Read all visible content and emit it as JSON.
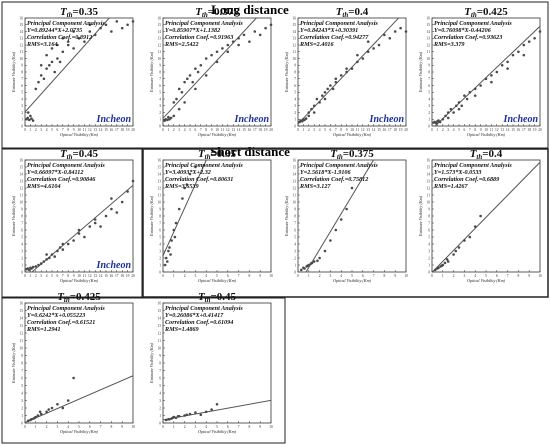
{
  "section_titles": {
    "long": "Long distance",
    "short": "Short distance"
  },
  "common": {
    "method": "Principal Component Analysis",
    "xlabel": "Optical Visibility (Km)",
    "ylabel": "Estimate Visibility (Km)",
    "location": "Incheon"
  },
  "colors": {
    "points": "#4a4a4a",
    "line": "#555555",
    "location": "#1a2f9c",
    "frame": "#222222"
  },
  "chart_data": [
    {
      "type": "scatter",
      "group": "long",
      "threshold": "T_th=0.35",
      "equation": "Y=0.89244*X+2.0735",
      "correlation": "Correlation Coef.=0.8912",
      "rms": "RMS=3.164",
      "xlim": [
        0,
        20
      ],
      "ylim": [
        0,
        16
      ],
      "fit": {
        "slope": 0.89244,
        "intercept": 2.0735
      },
      "x": [
        0.3,
        0.5,
        0.8,
        1,
        1.2,
        1.5,
        0.6,
        2,
        2.5,
        3,
        3.5,
        4,
        4.5,
        5,
        5.5,
        6,
        6.5,
        7,
        8,
        9,
        10,
        11,
        12,
        13,
        14,
        15,
        16,
        17,
        18,
        19,
        20,
        3,
        4,
        5,
        6,
        7,
        8,
        9,
        10,
        12
      ],
      "y": [
        1.0,
        1.2,
        0.9,
        1.5,
        1.1,
        0.8,
        2.0,
        5.5,
        6.5,
        7.5,
        7.0,
        8.5,
        9.0,
        9.5,
        8.0,
        10.0,
        9.5,
        11.0,
        12.0,
        11.5,
        13.0,
        12.5,
        14.0,
        13.5,
        14.5,
        15.0,
        14.0,
        15.5,
        14.5,
        15.0,
        15.5,
        9.0,
        10.5,
        11.5,
        12.0,
        13.0,
        12.5,
        14.0,
        13.0,
        15.0
      ]
    },
    {
      "type": "scatter",
      "group": "long",
      "threshold": "T_th=0.375",
      "equation": "Y=0.85907*X+1.1382",
      "correlation": "Correlation Coef.=0.91963",
      "rms": "RMS=2.5422",
      "xlim": [
        0,
        20
      ],
      "ylim": [
        0,
        16
      ],
      "fit": {
        "slope": 0.85907,
        "intercept": 1.1382
      },
      "x": [
        0.3,
        0.5,
        0.8,
        1,
        1.2,
        1.5,
        2,
        2.5,
        3,
        3.5,
        4,
        4.5,
        5,
        5.5,
        6,
        6.5,
        7,
        8,
        9,
        10,
        11,
        12,
        13,
        14,
        15,
        16,
        17,
        18,
        19,
        20,
        2,
        3,
        4,
        6,
        8,
        10,
        12,
        14
      ],
      "y": [
        0.8,
        1.0,
        0.9,
        1.3,
        1.0,
        1.2,
        3.5,
        4.0,
        5.5,
        5.0,
        6.5,
        7.0,
        7.5,
        6.5,
        8.5,
        8.0,
        9.0,
        10.0,
        10.5,
        11.0,
        11.5,
        12.0,
        12.5,
        13.0,
        13.5,
        12.5,
        14.0,
        13.5,
        14.5,
        15.0,
        1.5,
        2.5,
        3.5,
        5.5,
        7.5,
        9.5,
        11.0,
        12.0
      ]
    },
    {
      "type": "scatter",
      "group": "long",
      "threshold": "T_th=0.4",
      "equation": "Y=0.84243*X+0.30391",
      "correlation": "Correlation Coef.=0.94277",
      "rms": "RMS=2.4016",
      "xlim": [
        0,
        20
      ],
      "ylim": [
        0,
        16
      ],
      "fit": {
        "slope": 0.84243,
        "intercept": 0.30391
      },
      "x": [
        0.3,
        0.5,
        0.8,
        1,
        1.2,
        1.5,
        2,
        2.5,
        3,
        3.5,
        4,
        4.5,
        5,
        5.5,
        6,
        6.5,
        7,
        8,
        9,
        10,
        11,
        12,
        13,
        14,
        15,
        16,
        17,
        18,
        19,
        20,
        2,
        3,
        5,
        7,
        9,
        11,
        13
      ],
      "y": [
        0.6,
        0.8,
        0.7,
        1.0,
        0.9,
        1.1,
        2.0,
        2.5,
        3.0,
        4.0,
        3.5,
        4.5,
        5.0,
        5.5,
        6.0,
        5.5,
        7.0,
        7.5,
        8.0,
        8.5,
        9.5,
        10.0,
        11.0,
        11.5,
        12.0,
        13.5,
        13.0,
        14.0,
        14.5,
        14.0,
        1.5,
        2.0,
        4.0,
        6.5,
        8.5,
        10.5,
        12.5
      ]
    },
    {
      "type": "scatter",
      "group": "long",
      "threshold": "T_th=0.425",
      "equation": "Y=0.76098*X-0.44206",
      "correlation": "Correlation Coef.=0.93623",
      "rms": "RMS=3.379",
      "xlim": [
        0,
        20
      ],
      "ylim": [
        0,
        16
      ],
      "fit": {
        "slope": 0.76098,
        "intercept": -0.44206
      },
      "x": [
        0.3,
        0.5,
        0.8,
        1,
        1.2,
        1.5,
        2,
        2.5,
        3,
        3.5,
        4,
        4.5,
        5,
        5.5,
        6,
        6.5,
        7,
        8,
        9,
        10,
        11,
        12,
        13,
        14,
        15,
        16,
        17,
        18,
        19,
        20,
        3,
        5,
        8,
        11,
        14,
        17
      ],
      "y": [
        0.5,
        0.6,
        0.4,
        0.7,
        0.8,
        0.6,
        1.0,
        1.5,
        2.0,
        2.5,
        2.0,
        3.0,
        3.5,
        3.0,
        4.5,
        4.0,
        5.0,
        5.5,
        6.0,
        7.0,
        7.5,
        8.0,
        9.0,
        9.5,
        10.5,
        11.0,
        12.0,
        12.5,
        13.0,
        14.0,
        1.2,
        2.5,
        4.5,
        6.5,
        8.5,
        10.5
      ]
    },
    {
      "type": "scatter",
      "group": "long",
      "threshold": "T_th=0.45",
      "equation": "Y=0.66097*X-0.84112",
      "correlation": "Correlation Coef.=0.90846",
      "rms": "RMS=4.6104",
      "xlim": [
        0,
        20
      ],
      "ylim": [
        0,
        16
      ],
      "fit": {
        "slope": 0.66097,
        "intercept": -0.84112
      },
      "x": [
        0.3,
        0.5,
        0.8,
        1,
        1.2,
        1.5,
        2,
        2.5,
        3,
        3.5,
        4,
        4.5,
        5,
        5.5,
        6,
        6.5,
        7,
        8,
        9,
        10,
        11,
        12,
        13,
        14,
        15,
        16,
        17,
        18,
        19,
        20,
        4,
        7,
        10,
        13,
        16
      ],
      "y": [
        0.4,
        0.5,
        0.3,
        0.6,
        0.5,
        0.7,
        0.8,
        1.0,
        1.2,
        1.5,
        1.8,
        2.0,
        2.5,
        2.2,
        3.0,
        3.5,
        3.2,
        4.0,
        4.5,
        5.5,
        5.0,
        6.5,
        7.0,
        6.5,
        8.0,
        9.0,
        8.5,
        10.0,
        11.5,
        13.0,
        2.5,
        4.0,
        6.0,
        7.5,
        10.5
      ]
    },
    {
      "type": "scatter",
      "group": "short",
      "threshold": "T_th=0.35",
      "equation": "Y=3.4093*X+2.32",
      "correlation": "Correlation Coef.=0.80631",
      "rms": "RMS=3.6539",
      "xlim": [
        0,
        10
      ],
      "ylim": [
        0,
        16
      ],
      "fit": {
        "slope": 3.4093,
        "intercept": 2.32
      },
      "x": [
        0.2,
        0.3,
        0.5,
        0.6,
        0.8,
        1,
        1.2,
        1.5,
        1.8,
        2,
        2.2,
        2.5,
        3,
        0.4,
        0.7,
        1.1
      ],
      "y": [
        1.0,
        2.0,
        3.0,
        3.5,
        4.5,
        6.0,
        7.0,
        9.0,
        10.5,
        12.0,
        12.5,
        14.0,
        15.0,
        1.5,
        2.5,
        5.0
      ]
    },
    {
      "type": "scatter",
      "group": "short",
      "threshold": "T_th=0.375",
      "equation": "Y=2.5618*X-1.9106",
      "correlation": "Correlation Coef.=0.75812",
      "rms": "RMS=3.127",
      "xlim": [
        0,
        10
      ],
      "ylim": [
        0,
        16
      ],
      "fit": {
        "slope": 2.5618,
        "intercept": -1.9106
      },
      "x": [
        0.3,
        0.5,
        0.8,
        1,
        1.2,
        1.5,
        2,
        2.5,
        3,
        3.5,
        4,
        4.5,
        5,
        0.6,
        0.9,
        1.3,
        1.8
      ],
      "y": [
        0.3,
        0.6,
        0.8,
        1.0,
        1.2,
        1.5,
        2.0,
        3.0,
        4.5,
        6.0,
        7.5,
        9.0,
        12.0,
        0.5,
        0.9,
        1.3,
        1.6
      ]
    },
    {
      "type": "scatter",
      "group": "short",
      "threshold": "T_th=0.4",
      "equation": "Y=1.573*X-0.0533",
      "correlation": "Correlation Coef.=0.6889",
      "rms": "RMS=1.4267",
      "xlim": [
        0,
        10
      ],
      "ylim": [
        0,
        16
      ],
      "fit": {
        "slope": 1.573,
        "intercept": -0.0533
      },
      "x": [
        0.3,
        0.5,
        0.8,
        1,
        1.2,
        1.5,
        2,
        2.5,
        3,
        3.5,
        4,
        4.5,
        0.6,
        0.9,
        1.4,
        2.2
      ],
      "y": [
        0.3,
        0.5,
        0.8,
        1.0,
        1.3,
        1.5,
        2.5,
        3.5,
        4.5,
        5.0,
        6.5,
        8.0,
        0.6,
        0.9,
        1.8,
        3.0
      ]
    },
    {
      "type": "scatter",
      "group": "short",
      "threshold": "T_th=0.425",
      "equation": "Y=0.6242*X+0.055223",
      "correlation": "Correlation Coef.=0.61521",
      "rms": "RMS=1.2941",
      "xlim": [
        0,
        10
      ],
      "ylim": [
        0,
        16
      ],
      "fit": {
        "slope": 0.6242,
        "intercept": 0.055223
      },
      "x": [
        0.3,
        0.5,
        0.8,
        1,
        1.2,
        1.5,
        2,
        2.5,
        3,
        3.5,
        4,
        0.6,
        0.9,
        1.4,
        2.2,
        4.5
      ],
      "y": [
        0.3,
        0.4,
        0.6,
        0.8,
        1.0,
        1.2,
        1.5,
        2.0,
        2.5,
        2.0,
        3.0,
        0.5,
        0.7,
        1.5,
        1.8,
        6.0
      ]
    },
    {
      "type": "scatter",
      "group": "short",
      "threshold": "T_th=0.45",
      "equation": "Y=0.26086*X+0.41417",
      "correlation": "Correlation Coef.=0.61094",
      "rms": "RMS=1.4869",
      "xlim": [
        0,
        10
      ],
      "ylim": [
        0,
        16
      ],
      "fit": {
        "slope": 0.26086,
        "intercept": 0.41417
      },
      "x": [
        0.3,
        0.5,
        0.8,
        1,
        1.2,
        1.5,
        2,
        2.5,
        3,
        3.5,
        4,
        4.5,
        0.6,
        0.9,
        1.4,
        2.2,
        5
      ],
      "y": [
        0.4,
        0.5,
        0.6,
        0.8,
        0.7,
        0.9,
        1.0,
        1.2,
        1.4,
        1.1,
        1.5,
        1.8,
        0.5,
        0.7,
        0.9,
        1.1,
        2.5
      ]
    }
  ]
}
